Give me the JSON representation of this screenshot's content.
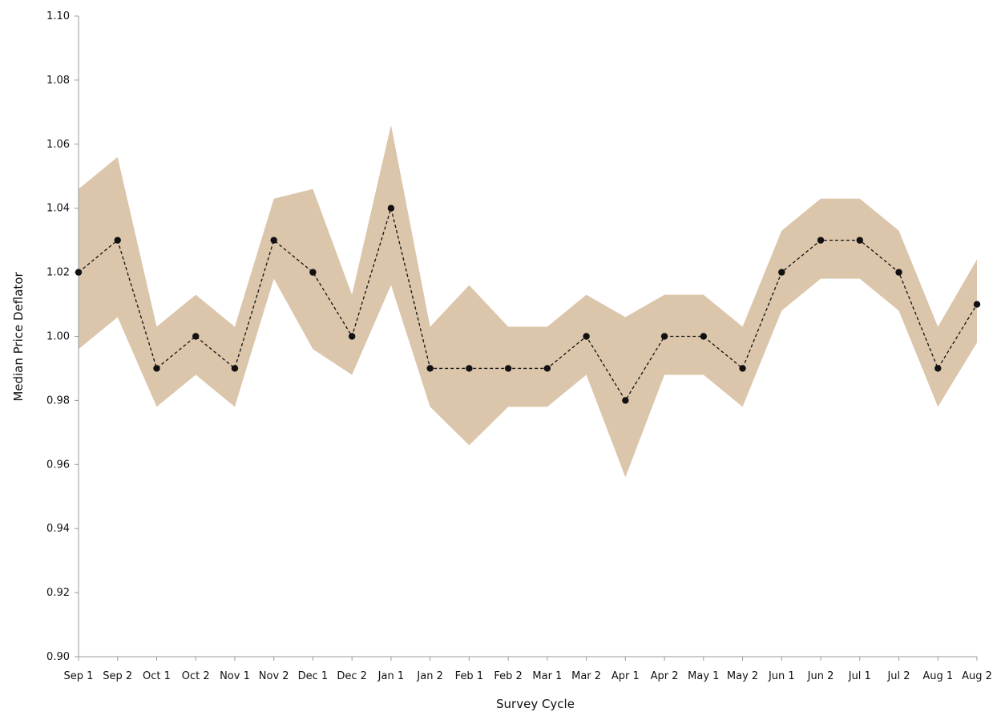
{
  "chart_data": {
    "type": "line",
    "title": "",
    "xlabel": "Survey Cycle",
    "ylabel": "Median Price Deflator",
    "ylim": [
      0.9,
      1.1
    ],
    "yticks": [
      "0.90",
      "0.92",
      "0.94",
      "0.96",
      "0.98",
      "1.00",
      "1.02",
      "1.04",
      "1.06",
      "1.08",
      "1.10"
    ],
    "categories": [
      "Sep 1",
      "Sep 2",
      "Oct 1",
      "Oct 2",
      "Nov 1",
      "Nov 2",
      "Dec 1",
      "Dec 2",
      "Jan 1",
      "Jan 2",
      "Feb 1",
      "Feb 2",
      "Mar 1",
      "Mar 2",
      "Apr 1",
      "Apr 2",
      "May 1",
      "May 2",
      "Jun 1",
      "Jun 2",
      "Jul 1",
      "Jul 2",
      "Aug 1",
      "Aug 2"
    ],
    "series": [
      {
        "role": "median",
        "values": [
          1.02,
          1.03,
          0.99,
          1.0,
          0.99,
          1.03,
          1.02,
          1.0,
          1.04,
          0.99,
          0.99,
          0.99,
          0.99,
          1.0,
          0.98,
          1.0,
          1.0,
          0.99,
          1.02,
          1.03,
          1.03,
          1.02,
          0.99,
          1.01
        ]
      }
    ],
    "band": {
      "upper": [
        1.046,
        1.056,
        1.003,
        1.013,
        1.003,
        1.043,
        1.046,
        1.013,
        1.066,
        1.003,
        1.016,
        1.003,
        1.003,
        1.013,
        1.006,
        1.013,
        1.013,
        1.003,
        1.033,
        1.043,
        1.043,
        1.033,
        1.003,
        1.024
      ],
      "lower": [
        0.996,
        1.006,
        0.978,
        0.988,
        0.978,
        1.018,
        0.996,
        0.988,
        1.016,
        0.978,
        0.966,
        0.978,
        0.978,
        0.988,
        0.956,
        0.988,
        0.988,
        0.978,
        1.008,
        1.018,
        1.018,
        1.008,
        0.978,
        0.998
      ]
    },
    "colors": {
      "band": "#dcc6ab",
      "line": "#111111",
      "marker": "#111111",
      "axis": "#999999"
    },
    "grid": false,
    "legend": "none"
  }
}
